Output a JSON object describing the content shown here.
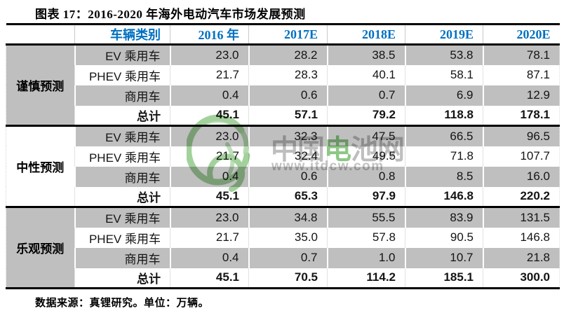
{
  "page": {
    "title": "图表 17：2016-2020 年海外电动汽车市场发展预测",
    "source_note": "数据来源：真锂研究。单位：万辆。"
  },
  "watermark": {
    "brand_prefix": "中国",
    "brand_green": "电",
    "brand_suffix": "池网",
    "url": "www.itdcw.com"
  },
  "colors": {
    "header_text_blue": "#0070C0",
    "band_gray": "#BFBFBF",
    "border_black": "#000000",
    "watermark_green": "#48A43A",
    "watermark_gray": "#8C8C8C"
  },
  "chart_data": {
    "type": "table",
    "title": "图表 17：2016-2020 年海外电动汽车市场发展预测",
    "columns": [
      "车辆类别",
      "2016 年",
      "2017E",
      "2018E",
      "2019E",
      "2020E"
    ],
    "unit": "万辆",
    "source": "真锂研究",
    "sections": [
      {
        "name": "谨慎预测",
        "rows": [
          {
            "label": "EV 乘用车",
            "values": [
              "23.0",
              "28.2",
              "38.5",
              "53.8",
              "78.1"
            ]
          },
          {
            "label": "PHEV 乘用车",
            "values": [
              "21.7",
              "28.3",
              "40.1",
              "58.1",
              "87.1"
            ]
          },
          {
            "label": "商用车",
            "values": [
              "0.4",
              "0.6",
              "0.7",
              "6.9",
              "12.9"
            ]
          },
          {
            "label": "总计",
            "values": [
              "45.1",
              "57.1",
              "79.2",
              "118.8",
              "178.1"
            ]
          }
        ]
      },
      {
        "name": "中性预测",
        "rows": [
          {
            "label": "EV 乘用车",
            "values": [
              "23.0",
              "32.3",
              "47.5",
              "66.5",
              "96.5"
            ]
          },
          {
            "label": "PHEV 乘用车",
            "values": [
              "21.7",
              "32.4",
              "49.5",
              "71.8",
              "107.7"
            ]
          },
          {
            "label": "商用车",
            "values": [
              "0.4",
              "0.6",
              "0.8",
              "8.5",
              "16.0"
            ]
          },
          {
            "label": "总计",
            "values": [
              "45.1",
              "65.3",
              "97.9",
              "146.8",
              "220.2"
            ]
          }
        ]
      },
      {
        "name": "乐观预测",
        "rows": [
          {
            "label": "EV 乘用车",
            "values": [
              "23.0",
              "34.8",
              "55.5",
              "83.9",
              "131.5"
            ]
          },
          {
            "label": "PHEV 乘用车",
            "values": [
              "21.7",
              "35.0",
              "57.8",
              "90.5",
              "146.8"
            ]
          },
          {
            "label": "商用车",
            "values": [
              "0.4",
              "0.7",
              "1.0",
              "10.7",
              "21.8"
            ]
          },
          {
            "label": "总计",
            "values": [
              "45.1",
              "70.5",
              "114.2",
              "185.1",
              "300.0"
            ]
          }
        ]
      }
    ]
  }
}
